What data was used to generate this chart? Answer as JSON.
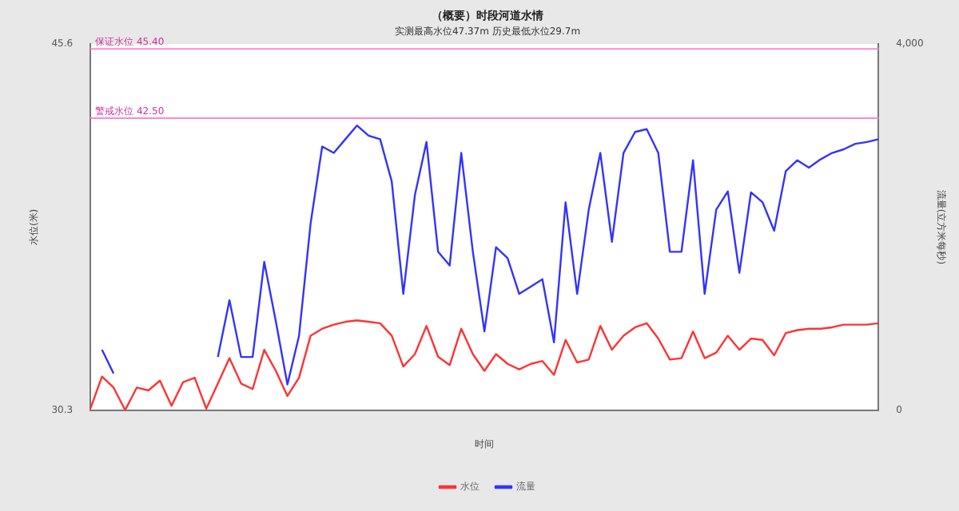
{
  "chart_data": {
    "type": "line",
    "title": "（概要）时段河道水情",
    "subtitle": "实测最高水位47.37m 历史最低水位29.7m",
    "xlabel": "时间",
    "ylabel": "水位(米)",
    "y2label": "流量(立方米每秒)",
    "categories": [
      null,
      null,
      null,
      null,
      null,
      null,
      null,
      null,
      null,
      null,
      null,
      null,
      null,
      null,
      null,
      null,
      null,
      null,
      null,
      null,
      null,
      null,
      null,
      null,
      null,
      null,
      null,
      null,
      null,
      null,
      null,
      null,
      null,
      null,
      null,
      null,
      null,
      null,
      null,
      null,
      null,
      null,
      null,
      null,
      null,
      null,
      null,
      null,
      null,
      null,
      null,
      null,
      null,
      null,
      null,
      null,
      null,
      null,
      null,
      null,
      null,
      null,
      null,
      null,
      null,
      null,
      null,
      null,
      null
    ],
    "series": [
      {
        "name": "水位",
        "color": "#ff3333",
        "values": [
          30.36,
          31.7,
          31.24,
          30.3,
          31.24,
          31.12,
          31.53,
          30.48,
          31.47,
          31.65,
          30.36,
          31.41,
          32.47,
          31.41,
          31.18,
          32.82,
          31.94,
          30.89,
          31.65,
          33.41,
          33.7,
          33.87,
          33.99,
          34.05,
          33.99,
          33.93,
          33.41,
          32.12,
          32.64,
          33.82,
          32.53,
          32.18,
          33.7,
          32.64,
          31.94,
          32.64,
          32.23,
          32.0,
          32.23,
          32.35,
          31.77,
          33.23,
          32.29,
          32.41,
          33.82,
          32.82,
          33.41,
          33.76,
          33.93,
          33.29,
          32.41,
          32.47,
          33.58,
          32.47,
          32.7,
          33.41,
          32.82,
          33.29,
          33.23,
          32.59,
          33.52,
          33.64,
          33.7,
          33.7,
          33.76,
          33.87,
          33.87,
          33.87,
          33.93
        ]
      },
      {
        "name": "流量",
        "color": "#3333ff",
        "axis": "y2",
        "values": [
          null,
          660,
          400,
          null,
          null,
          null,
          null,
          null,
          null,
          null,
          null,
          580,
          1200,
          580,
          580,
          1620,
          970,
          280,
          810,
          2040,
          2880,
          2810,
          2960,
          3110,
          3000,
          2960,
          2500,
          1270,
          2350,
          2930,
          1730,
          1580,
          2810,
          1730,
          860,
          1780,
          1660,
          1270,
          1350,
          1430,
          740,
          2270,
          1270,
          2190,
          2810,
          1840,
          2810,
          3040,
          3070,
          2810,
          1730,
          1730,
          2730,
          1270,
          2190,
          2390,
          1500,
          2380,
          2270,
          1960,
          2610,
          2730,
          2650,
          2740,
          2810,
          2850,
          2910,
          2930,
          2960
        ]
      }
    ],
    "ylim": [
      30.3,
      45.6
    ],
    "yticks": [
      30.3,
      45.6
    ],
    "y2lim": [
      0,
      4000
    ],
    "y2ticks": [
      0,
      {
        "value": 4000,
        "label": "4,000"
      }
    ],
    "ref_lines": [
      {
        "axis": "y",
        "value": 45.4,
        "label": "保证水位 45.40",
        "color": "#ff88cc"
      },
      {
        "axis": "y",
        "value": 42.5,
        "label": "警戒水位 42.50",
        "color": "#ff88cc"
      }
    ],
    "grid": false,
    "legend": "bottom",
    "marker": "none",
    "line_style": "solid",
    "tick_labels": "y"
  }
}
